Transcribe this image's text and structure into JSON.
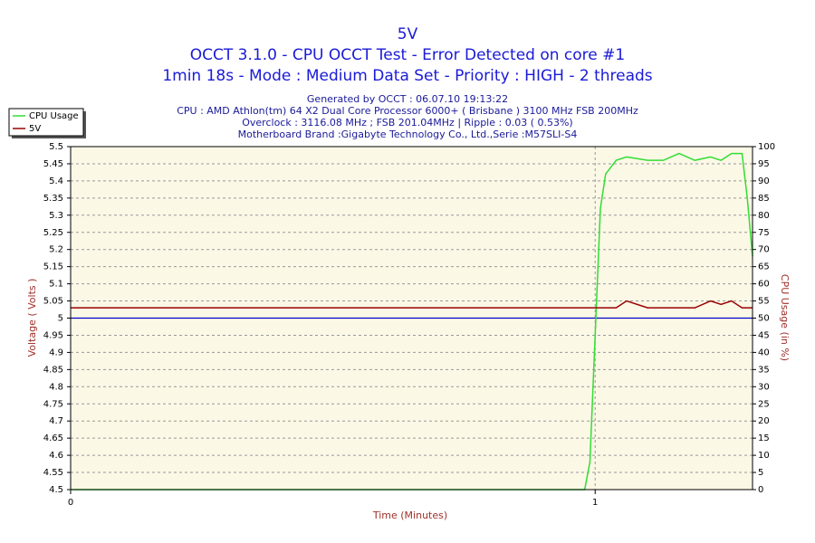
{
  "chart_data": {
    "type": "line",
    "title": [
      "5V",
      "OCCT 3.1.0 - CPU OCCT Test - Error Detected on core #1",
      "1min 18s - Mode : Medium Data Set - Priority : HIGH - 2 threads"
    ],
    "details": [
      "Generated by OCCT : 06.07.10 19:13:22",
      "CPU : AMD Athlon(tm) 64 X2 Dual Core Processor 6000+ ( Brisbane ) 3100 MHz FSB 200MHz",
      "Overclock : 3116.08 MHz ; FSB 201.04MHz | Ripple : 0.03 ( 0.53%)",
      "Motherboard Brand :Gigabyte Technology Co., Ltd.,Serie :M57SLI-S4"
    ],
    "x_label": "Time (Minutes)",
    "y_label": "Voltage ( Volts )",
    "y2_label": "CPU Usage (in %)",
    "x": [
      0,
      0.98,
      0.99,
      1.0,
      1.01,
      1.02,
      1.04,
      1.06,
      1.1,
      1.13,
      1.16,
      1.19,
      1.22,
      1.24,
      1.26,
      1.28,
      1.29,
      1.3
    ],
    "series": [
      {
        "name": "CPU Usage",
        "color": "#33dd33",
        "axis": "y2",
        "values": [
          0,
          0,
          8,
          45,
          82,
          92,
          96,
          97,
          96,
          96,
          98,
          96,
          97,
          96,
          98,
          98,
          85,
          68
        ]
      },
      {
        "name": "5V",
        "color": "#990000",
        "values": [
          5.03,
          5.03,
          5.03,
          5.03,
          5.03,
          5.03,
          5.03,
          5.05,
          5.03,
          5.03,
          5.03,
          5.03,
          5.05,
          5.04,
          5.05,
          5.03,
          5.03,
          5.03
        ]
      }
    ],
    "reference_line": 5,
    "reference_color": "#0000cc",
    "xlim": [
      0,
      1.3
    ],
    "xticks": [
      0,
      1
    ],
    "ylim": [
      4.5,
      5.5
    ],
    "yticks": [
      4.5,
      4.55,
      4.6,
      4.65,
      4.7,
      4.75,
      4.8,
      4.85,
      4.9,
      4.95,
      5,
      5.05,
      5.1,
      5.15,
      5.2,
      5.25,
      5.3,
      5.35,
      5.4,
      5.45,
      5.5
    ],
    "y2lim": [
      0,
      100
    ],
    "y2ticks": [
      0,
      5,
      10,
      15,
      20,
      25,
      30,
      35,
      40,
      45,
      50,
      55,
      60,
      65,
      70,
      75,
      80,
      85,
      90,
      95,
      100
    ],
    "grid": true,
    "legend": "top-left"
  }
}
